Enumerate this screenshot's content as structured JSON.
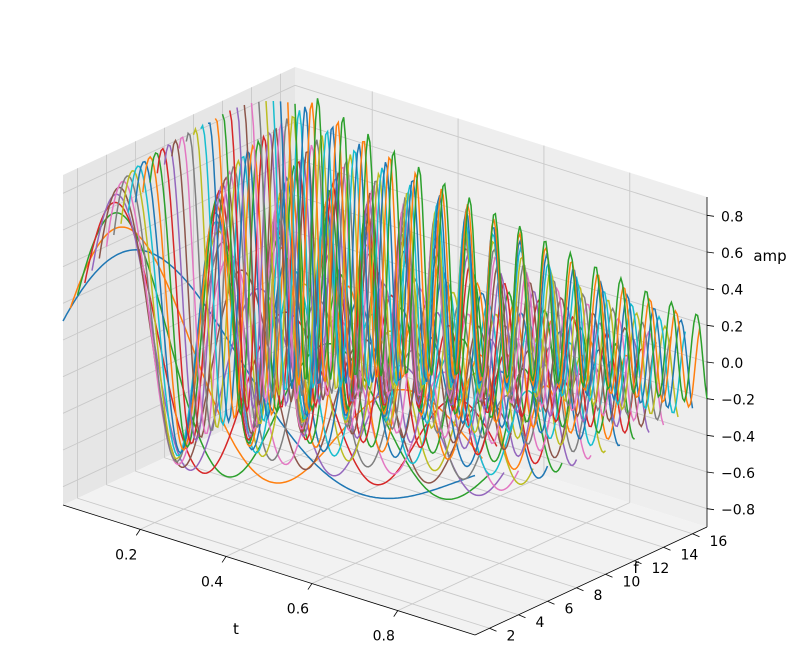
{
  "chart_data": {
    "type": "line",
    "projection": "3d",
    "title": "",
    "xlabel": "t",
    "ylabel": "f",
    "zlabel": "amp",
    "xlim": [
      0.02,
      0.98
    ],
    "ylim": [
      1,
      17
    ],
    "zlim": [
      -0.9,
      0.9
    ],
    "xticks": [
      "0.2",
      "0.4",
      "0.6",
      "0.8"
    ],
    "yticks": [
      "2",
      "4",
      "6",
      "8",
      "10",
      "12",
      "14",
      "16"
    ],
    "zticks": [
      "−0.8",
      "−0.6",
      "−0.4",
      "−0.2",
      "0.0",
      "0.2",
      "0.4",
      "0.6",
      "0.8"
    ],
    "grid": true,
    "palette": [
      "#1f77b4",
      "#ff7f0e",
      "#2ca02c",
      "#d62728",
      "#9467bd",
      "#8c564b",
      "#e377c2",
      "#7f7f7f",
      "#bcbd22",
      "#17becf"
    ],
    "series_description": "one curve per frequency f = 1..17 (step 0.5); amp = sin(2*pi*f*t) * exp(-1.3*t) * 0.85",
    "frequencies": [
      1,
      1.5,
      2,
      2.5,
      3,
      3.5,
      4,
      4.5,
      5,
      5.5,
      6,
      6.5,
      7,
      7.5,
      8,
      8.5,
      9,
      9.5,
      10,
      10.5,
      11,
      11.5,
      12,
      12.5,
      13,
      13.5,
      14,
      14.5,
      15,
      15.5,
      16,
      16.5,
      17
    ]
  }
}
